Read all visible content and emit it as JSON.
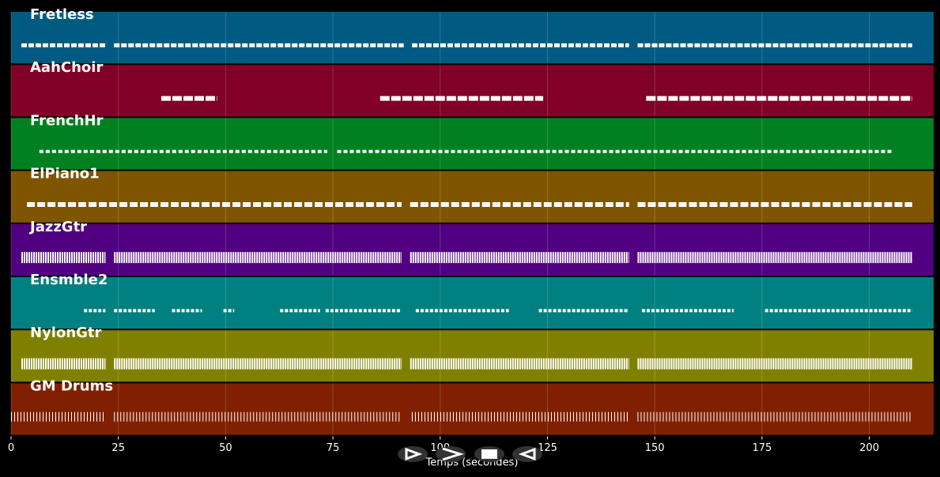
{
  "chart_data": {
    "type": "pianoroll",
    "xlabel": "Temps (secondes)",
    "xlim": [
      0,
      215
    ],
    "xticks": [
      0,
      25,
      50,
      75,
      100,
      125,
      150,
      175,
      200
    ],
    "grid": true,
    "tracks": [
      {
        "name": "Fretless",
        "color": "#005a82",
        "spans": [
          [
            2.4,
            22.2
          ],
          [
            24,
            91.5
          ],
          [
            93.4,
            144
          ],
          [
            146,
            210
          ]
        ]
      },
      {
        "name": "AahChoir",
        "color": "#800028",
        "spans": [
          [
            35,
            48
          ],
          [
            86,
            124
          ],
          [
            148,
            210
          ]
        ]
      },
      {
        "name": "FrenchHr",
        "color": "#008020",
        "spans": [
          [
            6.6,
            73.7
          ],
          [
            76,
            205.7
          ]
        ]
      },
      {
        "name": "ElPiano1",
        "color": "#7f5500",
        "spans": [
          [
            3.7,
            91
          ],
          [
            93,
            144
          ],
          [
            146,
            210
          ]
        ]
      },
      {
        "name": "JazzGtr",
        "color": "#500080",
        "spans": [
          [
            2.4,
            22
          ],
          [
            24,
            91
          ],
          [
            93,
            144
          ],
          [
            146,
            210
          ]
        ]
      },
      {
        "name": "Ensmble2",
        "color": "#008080",
        "spans": [
          [
            17,
            22
          ],
          [
            24,
            33.5
          ],
          [
            37.5,
            44.5
          ],
          [
            49.5,
            52
          ],
          [
            62.7,
            72
          ],
          [
            73.3,
            91
          ],
          [
            94.3,
            116
          ],
          [
            123,
            144
          ],
          [
            147,
            168.4
          ],
          [
            175.7,
            210
          ]
        ]
      },
      {
        "name": "NylonGtr",
        "color": "#808000",
        "spans": [
          [
            2.4,
            22
          ],
          [
            24,
            91
          ],
          [
            93,
            144
          ],
          [
            146,
            210
          ]
        ]
      },
      {
        "name": "GM Drums",
        "color": "#802000",
        "spans": [
          [
            0,
            22
          ],
          [
            24,
            91
          ],
          [
            93.4,
            144
          ],
          [
            146,
            210
          ]
        ]
      }
    ]
  }
}
